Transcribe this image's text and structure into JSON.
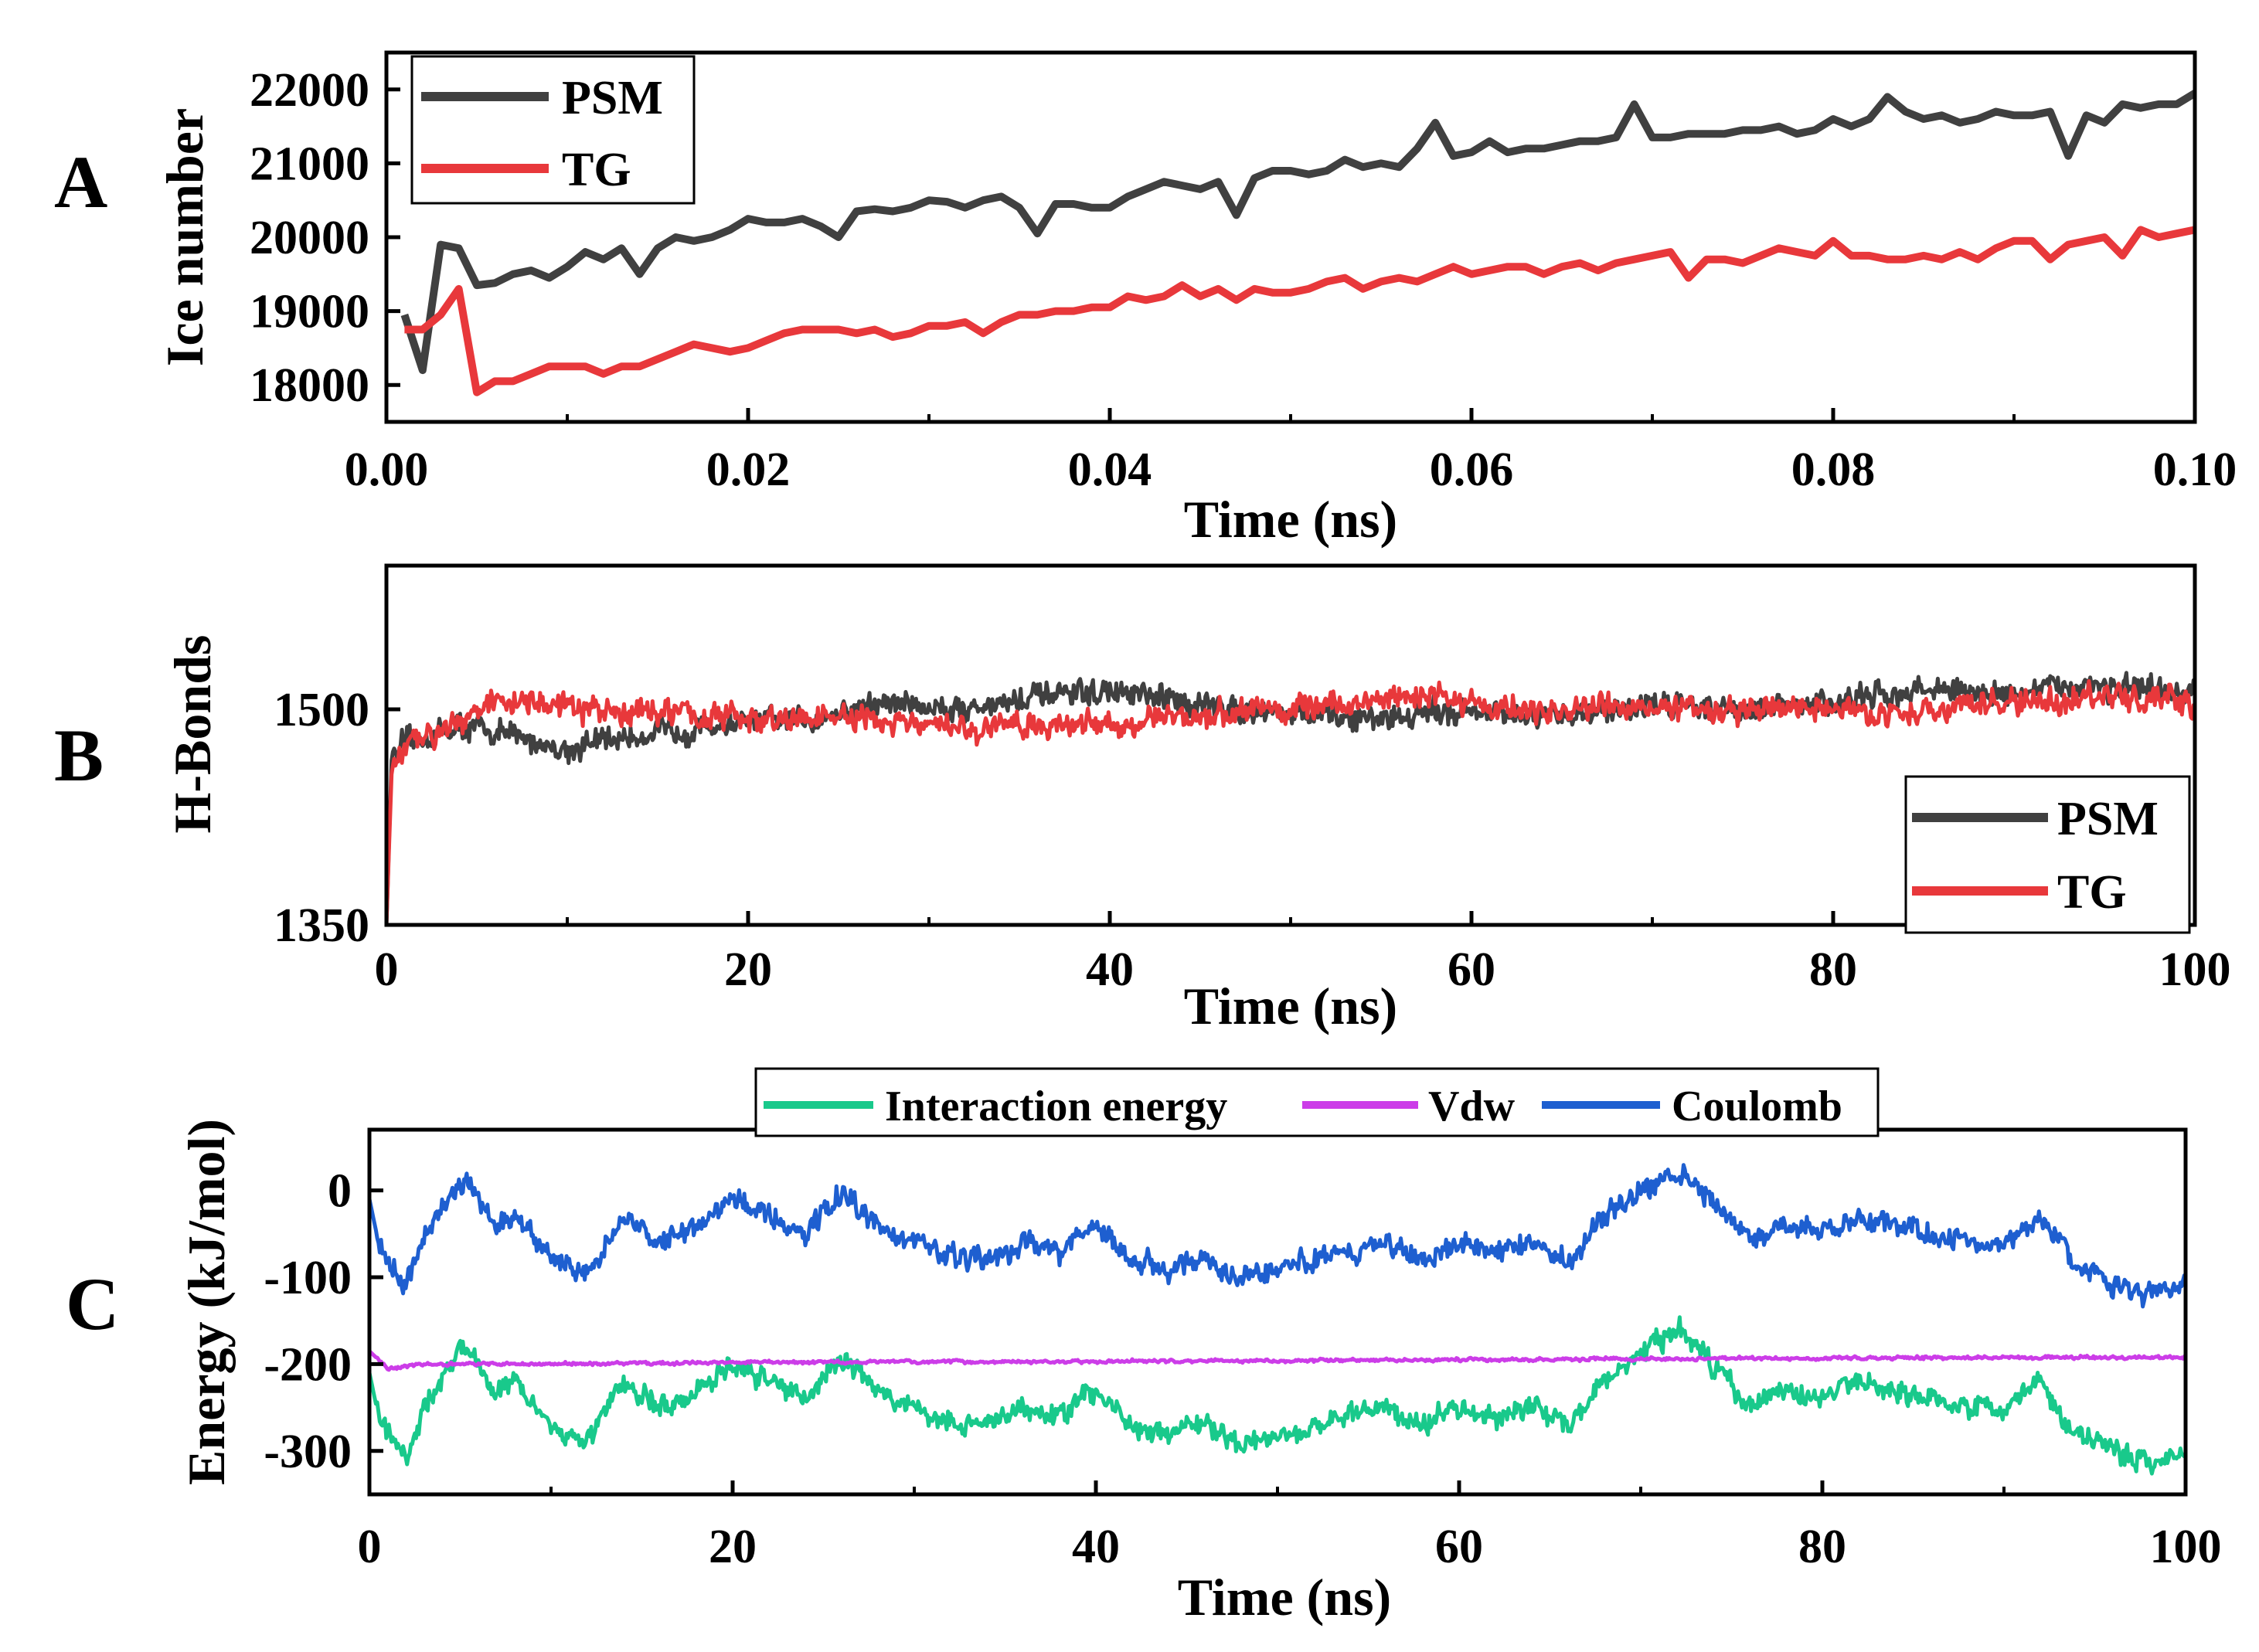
{
  "figure": {
    "panels": [
      {
        "letter": "A"
      },
      {
        "letter": "B"
      },
      {
        "letter": "C"
      }
    ]
  },
  "chart_data": [
    {
      "panel": "A",
      "type": "line",
      "xlabel": "Time (ns)",
      "ylabel": "Ice number",
      "xlim": [
        0,
        0.1
      ],
      "ylim": [
        17500,
        22500
      ],
      "xticks": [
        0.0,
        0.02,
        0.04,
        0.06,
        0.08,
        0.1
      ],
      "xtick_labels": [
        "0.00",
        "0.02",
        "0.04",
        "0.06",
        "0.08",
        "0.10"
      ],
      "yticks": [
        18000,
        19000,
        20000,
        21000,
        22000
      ],
      "ytick_labels": [
        "18000",
        "19000",
        "20000",
        "21000",
        "22000"
      ],
      "legend_position": "top-left",
      "series": [
        {
          "name": "PSM",
          "color": "#404040",
          "x": [
            0.001,
            0.002,
            0.003,
            0.004,
            0.005,
            0.006,
            0.007,
            0.008,
            0.009,
            0.01,
            0.011,
            0.012,
            0.013,
            0.014,
            0.015,
            0.016,
            0.017,
            0.018,
            0.019,
            0.02,
            0.021,
            0.022,
            0.023,
            0.024,
            0.025,
            0.026,
            0.027,
            0.028,
            0.029,
            0.03,
            0.031,
            0.032,
            0.033,
            0.034,
            0.035,
            0.036,
            0.037,
            0.038,
            0.039,
            0.04,
            0.041,
            0.042,
            0.043,
            0.044,
            0.045,
            0.046,
            0.047,
            0.048,
            0.049,
            0.05,
            0.051,
            0.052,
            0.053,
            0.054,
            0.055,
            0.056,
            0.057,
            0.058,
            0.059,
            0.06,
            0.061,
            0.062,
            0.063,
            0.064,
            0.065,
            0.066,
            0.067,
            0.068,
            0.069,
            0.07,
            0.071,
            0.072,
            0.073,
            0.074,
            0.075,
            0.076,
            0.077,
            0.078,
            0.079,
            0.08,
            0.081,
            0.082,
            0.083,
            0.084,
            0.085,
            0.086,
            0.087,
            0.088,
            0.089,
            0.09,
            0.091,
            0.092,
            0.093,
            0.094,
            0.095,
            0.096,
            0.097,
            0.098,
            0.099,
            0.1
          ],
          "y": [
            18950,
            18200,
            19900,
            19850,
            19350,
            19380,
            19500,
            19550,
            19450,
            19600,
            19800,
            19700,
            19850,
            19500,
            19850,
            20000,
            19950,
            20000,
            20100,
            20250,
            20200,
            20200,
            20250,
            20150,
            20000,
            20350,
            20380,
            20350,
            20400,
            20500,
            20480,
            20400,
            20500,
            20550,
            20400,
            20050,
            20450,
            20450,
            20400,
            20400,
            20550,
            20650,
            20750,
            20700,
            20650,
            20750,
            20300,
            20800,
            20900,
            20900,
            20850,
            20900,
            21050,
            20950,
            21000,
            20950,
            21200,
            21550,
            21100,
            21150,
            21300,
            21150,
            21200,
            21200,
            21250,
            21300,
            21300,
            21350,
            21800,
            21350,
            21350,
            21400,
            21400,
            21400,
            21450,
            21450,
            21500,
            21400,
            21450,
            21600,
            21500,
            21600,
            21900,
            21700,
            21600,
            21650,
            21550,
            21600,
            21700,
            21650,
            21650,
            21700,
            21100,
            21650,
            21550,
            21800,
            21750,
            21800,
            21800,
            21950
          ]
        },
        {
          "name": "TG",
          "color": "#e8383b",
          "x": [
            0.001,
            0.002,
            0.003,
            0.004,
            0.005,
            0.006,
            0.007,
            0.008,
            0.009,
            0.01,
            0.011,
            0.012,
            0.013,
            0.014,
            0.015,
            0.016,
            0.017,
            0.018,
            0.019,
            0.02,
            0.021,
            0.022,
            0.023,
            0.024,
            0.025,
            0.026,
            0.027,
            0.028,
            0.029,
            0.03,
            0.031,
            0.032,
            0.033,
            0.034,
            0.035,
            0.036,
            0.037,
            0.038,
            0.039,
            0.04,
            0.041,
            0.042,
            0.043,
            0.044,
            0.045,
            0.046,
            0.047,
            0.048,
            0.049,
            0.05,
            0.051,
            0.052,
            0.053,
            0.054,
            0.055,
            0.056,
            0.057,
            0.058,
            0.059,
            0.06,
            0.061,
            0.062,
            0.063,
            0.064,
            0.065,
            0.066,
            0.067,
            0.068,
            0.069,
            0.07,
            0.071,
            0.072,
            0.073,
            0.074,
            0.075,
            0.076,
            0.077,
            0.078,
            0.079,
            0.08,
            0.081,
            0.082,
            0.083,
            0.084,
            0.085,
            0.086,
            0.087,
            0.088,
            0.089,
            0.09,
            0.091,
            0.092,
            0.093,
            0.094,
            0.095,
            0.096,
            0.097,
            0.098,
            0.099,
            0.1
          ],
          "y": [
            18750,
            18750,
            18950,
            19300,
            17900,
            18050,
            18050,
            18150,
            18250,
            18250,
            18250,
            18150,
            18250,
            18250,
            18350,
            18450,
            18550,
            18500,
            18450,
            18500,
            18600,
            18700,
            18750,
            18750,
            18750,
            18700,
            18750,
            18650,
            18700,
            18800,
            18800,
            18850,
            18700,
            18850,
            18950,
            18950,
            19000,
            19000,
            19050,
            19050,
            19200,
            19150,
            19200,
            19350,
            19200,
            19300,
            19150,
            19300,
            19250,
            19250,
            19300,
            19400,
            19450,
            19300,
            19400,
            19450,
            19400,
            19500,
            19600,
            19500,
            19550,
            19600,
            19600,
            19500,
            19600,
            19650,
            19550,
            19650,
            19700,
            19750,
            19800,
            19450,
            19700,
            19700,
            19650,
            19750,
            19850,
            19800,
            19750,
            19950,
            19750,
            19750,
            19700,
            19700,
            19750,
            19700,
            19800,
            19700,
            19850,
            19950,
            19950,
            19700,
            19900,
            19950,
            20000,
            19750,
            20100,
            20000,
            20050,
            20100
          ]
        }
      ]
    },
    {
      "panel": "B",
      "type": "line",
      "xlabel": "Time (ns)",
      "ylabel": "H-Bonds",
      "xlim": [
        0,
        100
      ],
      "ylim": [
        1350,
        1600
      ],
      "xticks": [
        0,
        20,
        40,
        60,
        80,
        100
      ],
      "xtick_labels": [
        "0",
        "20",
        "40",
        "60",
        "80",
        "100"
      ],
      "yticks": [
        1350,
        1500
      ],
      "ytick_labels": [
        "1350",
        "1500"
      ],
      "legend_position": "bottom-right",
      "series": [
        {
          "name": "PSM",
          "color": "#404040",
          "x": [
            0,
            0.3,
            1,
            2,
            4,
            6,
            8,
            10,
            12,
            14,
            16,
            18,
            20,
            22,
            24,
            26,
            28,
            30,
            32,
            34,
            36,
            38,
            40,
            42,
            44,
            46,
            48,
            50,
            52,
            54,
            56,
            58,
            60,
            62,
            64,
            66,
            68,
            70,
            72,
            74,
            76,
            78,
            80,
            82,
            84,
            86,
            88,
            90,
            92,
            94,
            96,
            98,
            100
          ],
          "y": [
            1350,
            1470,
            1475,
            1480,
            1488,
            1485,
            1478,
            1472,
            1478,
            1482,
            1485,
            1488,
            1490,
            1492,
            1495,
            1500,
            1505,
            1502,
            1500,
            1505,
            1508,
            1510,
            1512,
            1508,
            1505,
            1502,
            1500,
            1498,
            1495,
            1493,
            1495,
            1498,
            1500,
            1495,
            1493,
            1498,
            1500,
            1503,
            1505,
            1500,
            1500,
            1502,
            1505,
            1508,
            1512,
            1515,
            1510,
            1512,
            1514,
            1518,
            1515,
            1512,
            1510
          ],
          "noise": 10
        },
        {
          "name": "TG",
          "color": "#e8383b",
          "x": [
            0,
            0.3,
            1,
            2,
            4,
            6,
            8,
            10,
            12,
            14,
            16,
            18,
            20,
            22,
            24,
            26,
            28,
            30,
            32,
            34,
            36,
            38,
            40,
            42,
            44,
            46,
            48,
            50,
            52,
            54,
            56,
            58,
            60,
            62,
            64,
            66,
            68,
            70,
            72,
            74,
            76,
            78,
            80,
            82,
            84,
            86,
            88,
            90,
            92,
            94,
            96,
            98,
            100
          ],
          "y": [
            1350,
            1460,
            1470,
            1480,
            1495,
            1505,
            1505,
            1500,
            1498,
            1500,
            1497,
            1495,
            1493,
            1492,
            1495,
            1493,
            1490,
            1488,
            1485,
            1488,
            1490,
            1490,
            1490,
            1492,
            1495,
            1497,
            1500,
            1500,
            1502,
            1505,
            1508,
            1510,
            1505,
            1500,
            1498,
            1500,
            1502,
            1503,
            1500,
            1498,
            1500,
            1502,
            1500,
            1498,
            1497,
            1500,
            1502,
            1505,
            1505,
            1508,
            1510,
            1505,
            1503
          ],
          "noise": 10
        }
      ]
    },
    {
      "panel": "C",
      "type": "line",
      "xlabel": "Time (ns)",
      "ylabel": "Energy (kJ/mol)",
      "xlim": [
        0,
        100
      ],
      "ylim": [
        -350,
        70
      ],
      "xticks": [
        0,
        20,
        40,
        60,
        80,
        100
      ],
      "xtick_labels": [
        "0",
        "20",
        "40",
        "60",
        "80",
        "100"
      ],
      "yticks": [
        -300,
        -200,
        -100,
        0
      ],
      "ytick_labels": [
        "-300",
        "-200",
        "-100",
        "0"
      ],
      "legend_position": "top-center",
      "series": [
        {
          "name": "Interaction energy",
          "color": "#19c98b",
          "x": [
            0,
            0.5,
            2,
            3,
            5,
            6,
            7,
            8,
            10,
            12,
            14,
            16,
            18,
            20,
            22,
            24,
            26,
            28,
            30,
            32,
            34,
            36,
            38,
            40,
            42,
            44,
            46,
            48,
            50,
            52,
            54,
            56,
            58,
            60,
            62,
            64,
            66,
            68,
            70,
            72,
            74,
            76,
            78,
            80,
            82,
            84,
            86,
            88,
            90,
            92,
            94,
            96,
            98,
            100
          ],
          "y": [
            -210,
            -260,
            -310,
            -250,
            -180,
            -200,
            -230,
            -220,
            -270,
            -290,
            -220,
            -250,
            -230,
            -200,
            -220,
            -240,
            -190,
            -230,
            -250,
            -270,
            -270,
            -250,
            -260,
            -230,
            -270,
            -280,
            -270,
            -290,
            -280,
            -270,
            -260,
            -250,
            -270,
            -250,
            -260,
            -250,
            -270,
            -220,
            -190,
            -160,
            -200,
            -250,
            -230,
            -240,
            -220,
            -230,
            -240,
            -250,
            -250,
            -220,
            -280,
            -300,
            -310,
            -300
          ],
          "noise": 14
        },
        {
          "name": "Vdw",
          "color": "#cc3de8",
          "x": [
            0,
            1,
            3,
            10,
            20,
            40,
            60,
            80,
            100
          ],
          "y": [
            -185,
            -205,
            -200,
            -200,
            -198,
            -197,
            -195,
            -193,
            -192
          ],
          "noise": 2
        },
        {
          "name": "Coulomb",
          "color": "#1e5fd0",
          "x": [
            0,
            0.5,
            2,
            3,
            5,
            6,
            7,
            8,
            10,
            12,
            14,
            16,
            18,
            20,
            22,
            24,
            26,
            28,
            30,
            32,
            34,
            36,
            38,
            40,
            42,
            44,
            46,
            48,
            50,
            52,
            54,
            56,
            58,
            60,
            62,
            64,
            66,
            68,
            70,
            72,
            74,
            76,
            78,
            80,
            82,
            84,
            86,
            88,
            90,
            92,
            94,
            96,
            98,
            100
          ],
          "y": [
            -10,
            -60,
            -110,
            -50,
            10,
            -10,
            -40,
            -30,
            -80,
            -100,
            -30,
            -60,
            -40,
            -10,
            -30,
            -50,
            0,
            -40,
            -60,
            -80,
            -80,
            -60,
            -70,
            -40,
            -80,
            -90,
            -80,
            -100,
            -90,
            -80,
            -70,
            -60,
            -80,
            -60,
            -70,
            -60,
            -80,
            -30,
            0,
            20,
            -10,
            -60,
            -40,
            -50,
            -30,
            -40,
            -50,
            -60,
            -60,
            -30,
            -90,
            -110,
            -120,
            -110
          ],
          "noise": 14
        }
      ]
    }
  ]
}
